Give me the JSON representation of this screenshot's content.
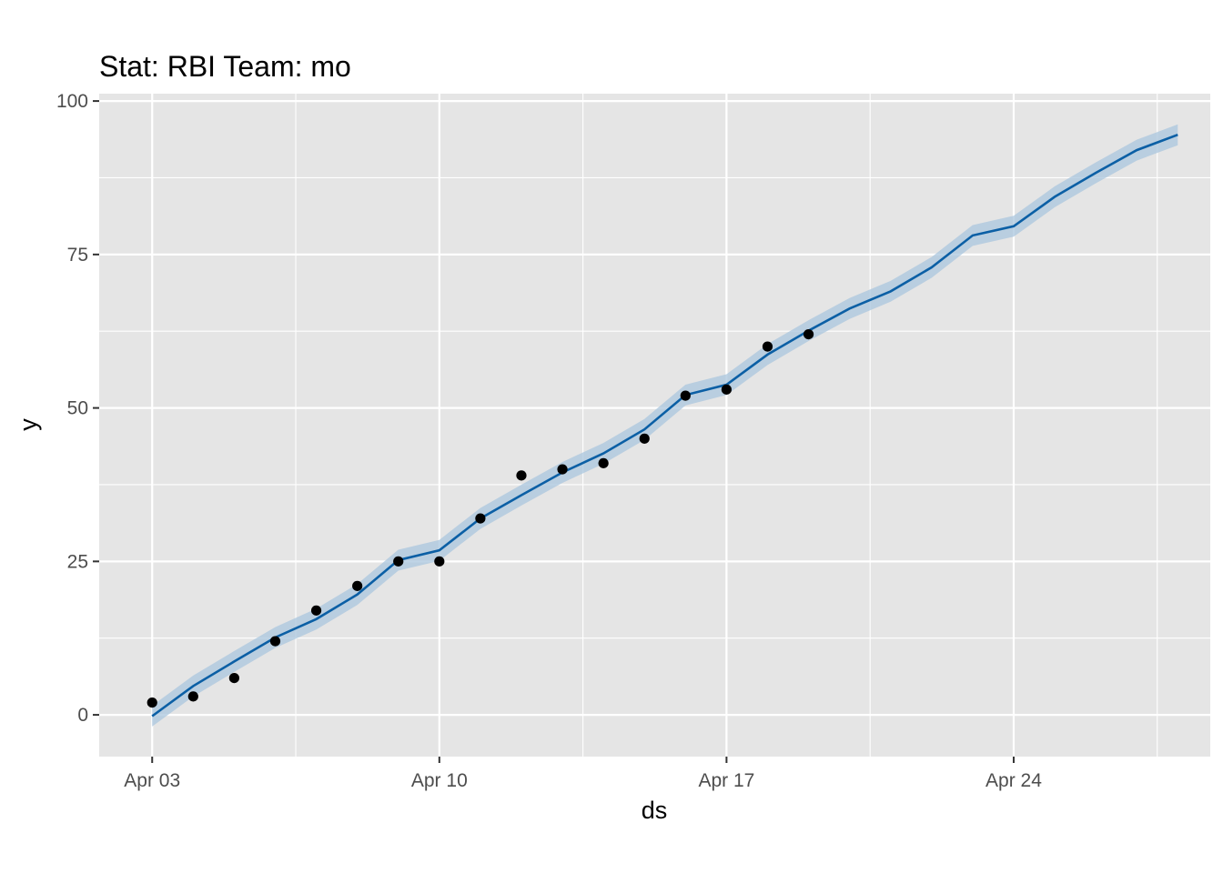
{
  "chart_data": {
    "type": "line",
    "title": "Stat: RBI Team: mo",
    "xlabel": "ds",
    "ylabel": "y",
    "x_range": [
      "2023-04-01T17:00",
      "2023-04-28T19:00"
    ],
    "ylim": [
      -6.8,
      101.2
    ],
    "y_ticks": [
      0,
      25,
      50,
      75,
      100
    ],
    "y_tick_labels": [
      "0",
      "25",
      "50",
      "75",
      "100"
    ],
    "x_ticks": [
      "2023-04-03",
      "2023-04-10",
      "2023-04-17",
      "2023-04-24"
    ],
    "x_tick_labels": [
      "Apr 03",
      "Apr 10",
      "Apr 17",
      "Apr 24"
    ],
    "grid": true,
    "colors": {
      "panel": "#e5e5e5",
      "grid": "#ffffff",
      "forecast": "#0b5fa5",
      "band": "#a9c6de",
      "points": "#000000"
    },
    "series": [
      {
        "type": "scatter",
        "x": [
          "2023-04-03",
          "2023-04-04",
          "2023-04-05",
          "2023-04-06",
          "2023-04-07",
          "2023-04-08",
          "2023-04-09",
          "2023-04-10",
          "2023-04-11",
          "2023-04-12",
          "2023-04-13",
          "2023-04-14",
          "2023-04-15",
          "2023-04-16",
          "2023-04-17",
          "2023-04-18",
          "2023-04-19"
        ],
        "y": [
          2,
          3,
          6,
          12,
          17,
          21,
          25,
          25,
          32,
          39,
          40,
          41,
          45,
          52,
          53,
          60,
          62
        ]
      },
      {
        "type": "line",
        "x": [
          "2023-04-03",
          "2023-04-04",
          "2023-04-05",
          "2023-04-06",
          "2023-04-07",
          "2023-04-08",
          "2023-04-09",
          "2023-04-10",
          "2023-04-11",
          "2023-04-12",
          "2023-04-13",
          "2023-04-14",
          "2023-04-15",
          "2023-04-16",
          "2023-04-17",
          "2023-04-18",
          "2023-04-19",
          "2023-04-20",
          "2023-04-21",
          "2023-04-22",
          "2023-04-23",
          "2023-04-24",
          "2023-04-25",
          "2023-04-26",
          "2023-04-27",
          "2023-04-28"
        ],
        "y": [
          -0.2,
          4.7,
          8.7,
          12.6,
          15.6,
          19.6,
          25.2,
          26.8,
          32.0,
          35.8,
          39.5,
          42.6,
          46.5,
          52.1,
          53.8,
          58.7,
          62.6,
          66.2,
          69.0,
          72.9,
          78.1,
          79.6,
          84.4,
          88.3,
          92.0,
          94.5
        ],
        "lower": [
          -1.9,
          3.0,
          7.0,
          10.9,
          13.9,
          17.9,
          23.5,
          25.1,
          30.3,
          34.1,
          37.8,
          40.9,
          44.8,
          50.4,
          52.1,
          57.0,
          60.9,
          64.5,
          67.3,
          71.2,
          76.4,
          77.9,
          82.7,
          86.6,
          90.3,
          92.8
        ],
        "upper": [
          1.5,
          6.4,
          10.4,
          14.3,
          17.3,
          21.3,
          26.9,
          28.5,
          33.7,
          37.5,
          41.2,
          44.3,
          48.2,
          53.8,
          55.5,
          60.4,
          64.3,
          67.9,
          70.7,
          74.6,
          79.8,
          81.3,
          86.1,
          90.0,
          93.7,
          96.2
        ]
      }
    ]
  }
}
